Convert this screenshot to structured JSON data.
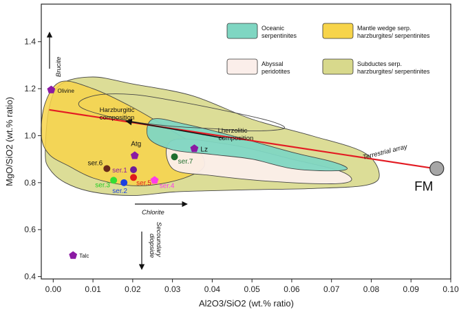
{
  "chart_data": {
    "type": "scatter",
    "xlabel": "Al2O3/SiO2 (wt.% ratio)",
    "ylabel": "MgO/SiO2 (wt.% ratio)",
    "xlim": [
      -0.003,
      0.1
    ],
    "ylim": [
      0.39,
      1.56
    ],
    "x_ticks": [
      0.0,
      0.01,
      0.02,
      0.03,
      0.04,
      0.05,
      0.06,
      0.07,
      0.08,
      0.09,
      0.1
    ],
    "x_tick_labels": [
      "0.00",
      "0.01",
      "0.02",
      "0.03",
      "0.04",
      "0.05",
      "0.06",
      "0.07",
      "0.08",
      "0.09",
      "0.10"
    ],
    "y_ticks": [
      0.4,
      0.6,
      0.8,
      1.0,
      1.2,
      1.4
    ],
    "y_tick_labels": [
      "0.4",
      "0.6",
      "0.8",
      "1.0",
      "1.2",
      "1.4"
    ],
    "grid": false,
    "legend": {
      "placement": "top-right",
      "entries": [
        {
          "label_lines": [
            "Oceanic",
            "serpentinites"
          ],
          "color": "#7fd6c2"
        },
        {
          "label_lines": [
            "Mantle wedge serp.",
            "harzburgites/ serpentinites"
          ],
          "color": "#f7d44a"
        },
        {
          "label_lines": [
            "Abyssal",
            "peridotites"
          ],
          "color": "#fbeeea"
        },
        {
          "label_lines": [
            "Subductes serp.",
            "harzburgites/ serpentinites"
          ],
          "color": "#d8d98c"
        }
      ]
    },
    "fields": [
      {
        "id": "subducted",
        "fill": "#d8d98c",
        "fill_opacity": 0.9,
        "points": [
          [
            -0.002,
            0.93
          ],
          [
            -0.001,
            1.12
          ],
          [
            0.002,
            1.22
          ],
          [
            0.01,
            1.25
          ],
          [
            0.02,
            1.22
          ],
          [
            0.035,
            1.17
          ],
          [
            0.05,
            1.07
          ],
          [
            0.065,
            1.0
          ],
          [
            0.078,
            0.93
          ],
          [
            0.082,
            0.84
          ],
          [
            0.079,
            0.79
          ],
          [
            0.065,
            0.775
          ],
          [
            0.05,
            0.77
          ],
          [
            0.038,
            0.765
          ],
          [
            0.03,
            0.76
          ],
          [
            0.02,
            0.745
          ],
          [
            0.01,
            0.76
          ],
          [
            0.003,
            0.8
          ],
          [
            -0.001,
            0.86
          ]
        ]
      },
      {
        "id": "mantle-wedge",
        "fill": "#f7d44a",
        "fill_opacity": 0.85,
        "points": [
          [
            -0.003,
            1.0
          ],
          [
            -0.002,
            1.14
          ],
          [
            0.002,
            1.23
          ],
          [
            0.01,
            1.2
          ],
          [
            0.02,
            1.12
          ],
          [
            0.03,
            1.02
          ],
          [
            0.036,
            0.95
          ],
          [
            0.038,
            0.87
          ],
          [
            0.033,
            0.82
          ],
          [
            0.025,
            0.79
          ],
          [
            0.018,
            0.79
          ],
          [
            0.01,
            0.82
          ],
          [
            0.004,
            0.87
          ],
          [
            -0.001,
            0.92
          ]
        ]
      },
      {
        "id": "abyssal",
        "fill": "#fbeeea",
        "fill_opacity": 0.95,
        "points": [
          [
            0.03,
            0.98
          ],
          [
            0.045,
            0.96
          ],
          [
            0.06,
            0.9
          ],
          [
            0.072,
            0.85
          ],
          [
            0.075,
            0.81
          ],
          [
            0.07,
            0.795
          ],
          [
            0.055,
            0.805
          ],
          [
            0.04,
            0.83
          ],
          [
            0.03,
            0.86
          ]
        ]
      },
      {
        "id": "oceanic",
        "fill": "#7fd6c2",
        "fill_opacity": 0.95,
        "points": [
          [
            0.025,
            1.07
          ],
          [
            0.033,
            1.05
          ],
          [
            0.045,
            1.0
          ],
          [
            0.06,
            0.93
          ],
          [
            0.07,
            0.89
          ],
          [
            0.074,
            0.86
          ],
          [
            0.07,
            0.85
          ],
          [
            0.06,
            0.86
          ],
          [
            0.05,
            0.9
          ],
          [
            0.04,
            0.92
          ],
          [
            0.03,
            0.94
          ],
          [
            0.024,
            0.99
          ]
        ]
      },
      {
        "id": "harzburgitic-outline",
        "fill": "none",
        "fill_opacity": 0,
        "points": [
          [
            0.007,
            1.15
          ],
          [
            0.012,
            1.175
          ],
          [
            0.02,
            1.175
          ],
          [
            0.03,
            1.15
          ],
          [
            0.045,
            1.1
          ],
          [
            0.055,
            1.06
          ],
          [
            0.058,
            1.03
          ],
          [
            0.05,
            1.02
          ],
          [
            0.04,
            1.03
          ],
          [
            0.03,
            1.04
          ],
          [
            0.02,
            1.06
          ],
          [
            0.012,
            1.09
          ],
          [
            0.007,
            1.12
          ]
        ]
      }
    ],
    "terrestrial_array": {
      "label": "Terrestrial array",
      "color": "#e31b23",
      "x": [
        -0.001,
        0.096
      ],
      "y": [
        1.11,
        0.86
      ]
    },
    "points": [
      {
        "label": "Olivine",
        "x": -0.0005,
        "y": 1.195,
        "marker": "pentagon",
        "color": "#8b1aa3",
        "label_color": "#111"
      },
      {
        "label": "Talc",
        "x": 0.005,
        "y": 0.49,
        "marker": "pentagon",
        "color": "#8b1aa3",
        "label_color": "#111"
      },
      {
        "label": "Atg",
        "x": 0.0205,
        "y": 0.915,
        "marker": "pentagon",
        "color": "#8b1aa3",
        "label_color": "#111"
      },
      {
        "label": "Lz",
        "x": 0.0355,
        "y": 0.945,
        "marker": "pentagon",
        "color": "#8b1aa3",
        "label_color": "#111"
      },
      {
        "label": "ser.1",
        "x": 0.0202,
        "y": 0.855,
        "marker": "circle",
        "color": "#6d1e9a",
        "label_color": "#8b1aa3"
      },
      {
        "label": "ser.2",
        "x": 0.0178,
        "y": 0.8,
        "marker": "circle",
        "color": "#1b3fe0",
        "label_color": "#1b3fe0"
      },
      {
        "label": "ser.3",
        "x": 0.0152,
        "y": 0.81,
        "marker": "circle",
        "color": "#33dd33",
        "label_color": "#22cc22"
      },
      {
        "label": "ser.4",
        "x": 0.0255,
        "y": 0.81,
        "marker": "pentagon",
        "color": "#ff3de8",
        "label_color": "#ff3de8"
      },
      {
        "label": "ser.5",
        "x": 0.0202,
        "y": 0.822,
        "marker": "circle",
        "color": "#e01a1a",
        "label_color": "#e01a1a"
      },
      {
        "label": "ser.6",
        "x": 0.0135,
        "y": 0.86,
        "marker": "circle",
        "color": "#6a2a1a",
        "label_color": "#111"
      },
      {
        "label": "ser.7",
        "x": 0.0305,
        "y": 0.91,
        "marker": "circle",
        "color": "#1f6e2e",
        "label_color": "#1f6e2e"
      },
      {
        "label": "FM",
        "x": 0.0965,
        "y": 0.86,
        "marker": "large-circle",
        "color": "#a6a6a6",
        "label_color": "#111"
      }
    ],
    "annotations": [
      {
        "text": "Brucite",
        "direction": "up"
      },
      {
        "text": "Harzburgitic",
        "text2": "composition"
      },
      {
        "text": "Lherzolitic",
        "text2": "composition"
      },
      {
        "text": "Chlorite",
        "direction": "right"
      },
      {
        "text": "Secoundary",
        "text2": "diopside",
        "direction": "down"
      }
    ]
  }
}
